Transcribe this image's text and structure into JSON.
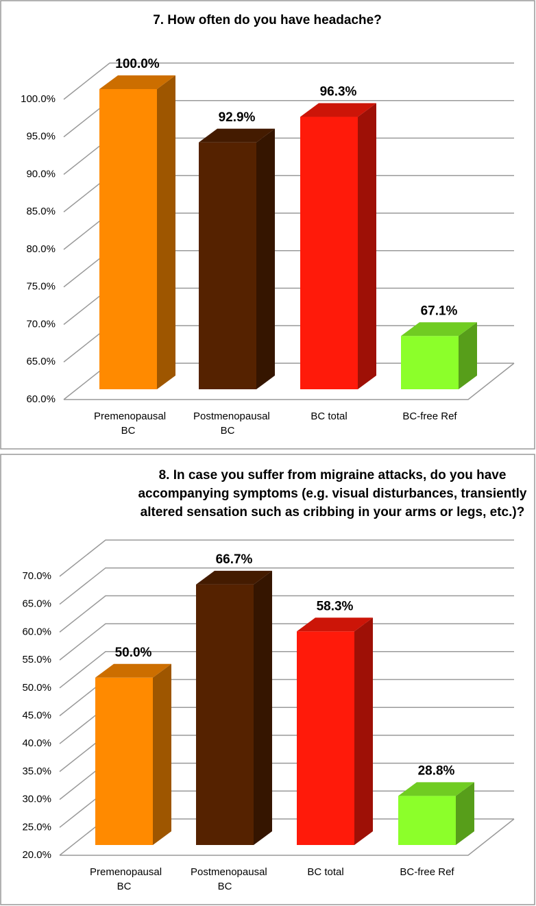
{
  "chart_data": [
    {
      "type": "bar3d",
      "title": "7. How often do you have headache?",
      "categories": [
        "Premenopausal BC",
        "Postmenopausal BC",
        "BC total",
        "BC-free Ref"
      ],
      "values": [
        100,
        92.9,
        96.3,
        67.1
      ],
      "value_labels": [
        "100.0%",
        "92.9%",
        "96.3%",
        "67.1%"
      ],
      "colors": [
        "#ff8a00",
        "#552200",
        "#ff1a0a",
        "#8cff2a"
      ],
      "ylim": [
        60,
        100
      ],
      "yticks": [
        {
          "value": 60,
          "label": "60.0%"
        },
        {
          "value": 65,
          "label": "65.0%"
        },
        {
          "value": 70,
          "label": "70.0%"
        },
        {
          "value": 75,
          "label": "75.0%"
        },
        {
          "value": 80,
          "label": "80.0%"
        },
        {
          "value": 85,
          "label": "85.0%"
        },
        {
          "value": 90,
          "label": "90.0%"
        },
        {
          "value": 95,
          "label": "95.0%"
        },
        {
          "value": 100,
          "label": "100.0%"
        }
      ],
      "grid": true
    },
    {
      "type": "bar3d",
      "title": "8. In case you suffer from migraine attacks, do you have accompanying symptoms (e.g. visual disturbances, transiently altered sensation such as cribbing in your arms or legs, etc.)?",
      "categories": [
        "Premenopausal BC",
        "Postmenopausal BC",
        "BC total",
        "BC-free Ref"
      ],
      "values": [
        50,
        66.7,
        58.3,
        28.8
      ],
      "value_labels": [
        "50.0%",
        "66.7%",
        "58.3%",
        "28.8%"
      ],
      "colors": [
        "#ff8a00",
        "#552200",
        "#ff1a0a",
        "#8cff2a"
      ],
      "ylim": [
        20,
        70
      ],
      "yticks": [
        {
          "value": 20,
          "label": "20.0%"
        },
        {
          "value": 25,
          "label": "25.0%"
        },
        {
          "value": 30,
          "label": "30.0%"
        },
        {
          "value": 35,
          "label": "35.0%"
        },
        {
          "value": 40,
          "label": "40.0%"
        },
        {
          "value": 45,
          "label": "45.0%"
        },
        {
          "value": 50,
          "label": "50.0%"
        },
        {
          "value": 55,
          "label": "55.0%"
        },
        {
          "value": 60,
          "label": "60.0%"
        },
        {
          "value": 65,
          "label": "65.0%"
        },
        {
          "value": 70,
          "label": "70.0%"
        }
      ],
      "grid": true
    }
  ]
}
